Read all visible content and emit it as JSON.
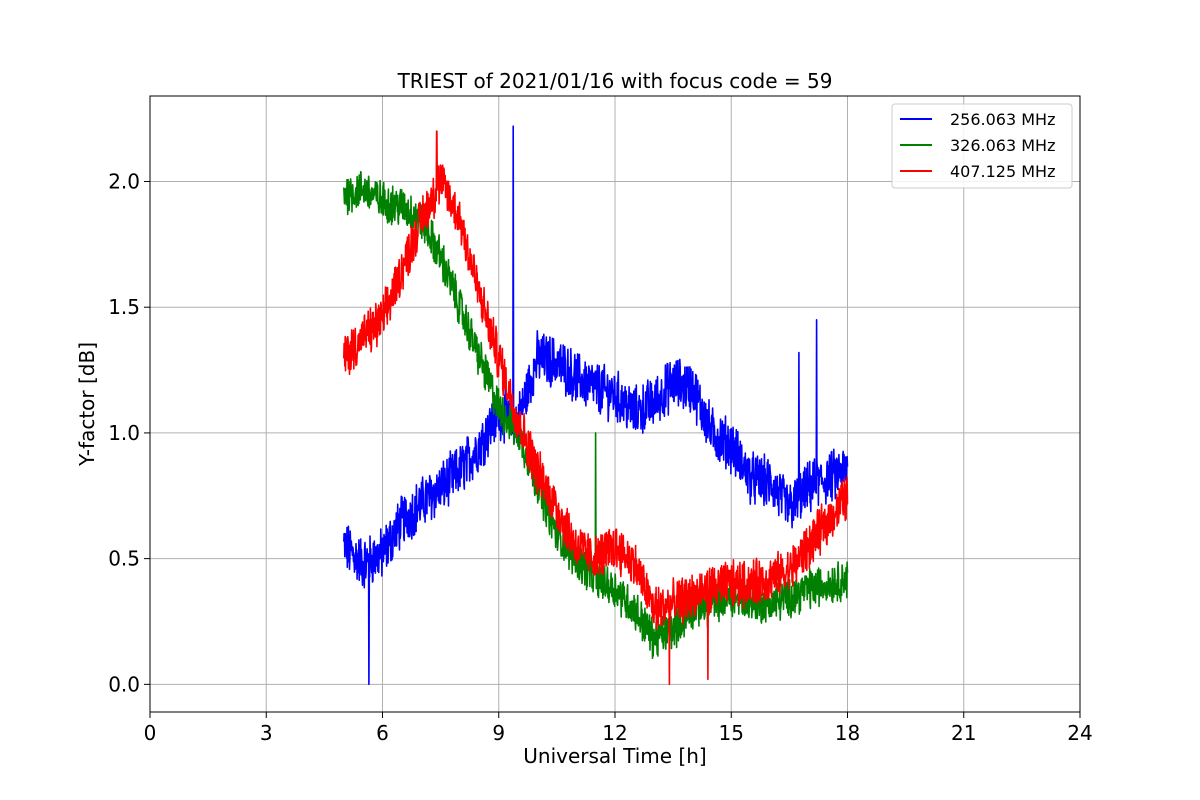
{
  "chart_data": {
    "type": "line",
    "title": "TRIEST of 2021/01/16 with focus code = 59",
    "xlabel": "Universal Time [h]",
    "ylabel": "Y-factor [dB]",
    "xlim": [
      0,
      24
    ],
    "ylim": [
      -0.11,
      2.34
    ],
    "xticks": [
      0,
      3,
      6,
      9,
      12,
      15,
      18,
      21,
      24
    ],
    "yticks": [
      0.0,
      0.5,
      1.0,
      1.5,
      2.0
    ],
    "xtick_labels": [
      "0",
      "3",
      "6",
      "9",
      "12",
      "15",
      "18",
      "21",
      "24"
    ],
    "ytick_labels": [
      "0.0",
      "0.5",
      "1.0",
      "1.5",
      "2.0"
    ],
    "grid": true,
    "legend_position": "top-right",
    "series": [
      {
        "name": "256.063 MHz",
        "color": "#0000ff",
        "x": [
          5.0,
          5.5,
          6.0,
          6.5,
          7.0,
          7.5,
          8.0,
          8.5,
          9.0,
          9.5,
          10.0,
          10.5,
          11.0,
          11.5,
          12.0,
          12.5,
          13.0,
          13.5,
          14.0,
          14.5,
          15.0,
          15.5,
          16.0,
          16.5,
          17.0,
          17.5,
          18.0
        ],
        "y": [
          0.55,
          0.48,
          0.52,
          0.65,
          0.72,
          0.78,
          0.85,
          0.95,
          1.08,
          1.05,
          1.3,
          1.28,
          1.22,
          1.18,
          1.15,
          1.08,
          1.12,
          1.2,
          1.18,
          1.0,
          0.95,
          0.82,
          0.8,
          0.7,
          0.78,
          0.82,
          0.85
        ],
        "noise": 0.09
      },
      {
        "name": "326.063 MHz",
        "color": "#008000",
        "x": [
          5.0,
          5.5,
          6.0,
          6.5,
          7.0,
          7.5,
          8.0,
          8.5,
          9.0,
          9.5,
          10.0,
          10.5,
          11.0,
          11.5,
          12.0,
          12.5,
          13.0,
          13.5,
          14.0,
          14.5,
          15.0,
          15.5,
          16.0,
          16.5,
          17.0,
          17.5,
          18.0
        ],
        "y": [
          1.95,
          1.97,
          1.92,
          1.9,
          1.85,
          1.7,
          1.5,
          1.3,
          1.1,
          1.0,
          0.8,
          0.6,
          0.5,
          0.42,
          0.38,
          0.3,
          0.18,
          0.22,
          0.3,
          0.32,
          0.35,
          0.33,
          0.32,
          0.35,
          0.38,
          0.4,
          0.42
        ],
        "noise": 0.07
      },
      {
        "name": "407.125 MHz",
        "color": "#ff0000",
        "x": [
          5.0,
          5.5,
          6.0,
          6.5,
          7.0,
          7.5,
          8.0,
          8.5,
          9.0,
          9.5,
          10.0,
          10.5,
          11.0,
          11.5,
          12.0,
          12.5,
          13.0,
          13.5,
          14.0,
          14.5,
          15.0,
          15.5,
          16.0,
          16.5,
          17.0,
          17.5,
          18.0
        ],
        "y": [
          1.3,
          1.38,
          1.45,
          1.65,
          1.85,
          2.0,
          1.85,
          1.55,
          1.3,
          1.05,
          0.85,
          0.7,
          0.55,
          0.5,
          0.55,
          0.48,
          0.3,
          0.32,
          0.35,
          0.38,
          0.4,
          0.4,
          0.42,
          0.45,
          0.55,
          0.65,
          0.75
        ],
        "noise": 0.08
      }
    ],
    "spikes": [
      {
        "series": 0,
        "x": 9.37,
        "y": 2.22
      },
      {
        "series": 0,
        "x": 5.65,
        "y": 0.0
      },
      {
        "series": 0,
        "x": 17.2,
        "y": 1.45
      },
      {
        "series": 0,
        "x": 16.75,
        "y": 1.32
      },
      {
        "series": 1,
        "x": 11.5,
        "y": 1.0
      },
      {
        "series": 2,
        "x": 7.4,
        "y": 2.2
      },
      {
        "series": 2,
        "x": 13.4,
        "y": 0.0
      },
      {
        "series": 2,
        "x": 14.4,
        "y": 0.02
      }
    ]
  }
}
